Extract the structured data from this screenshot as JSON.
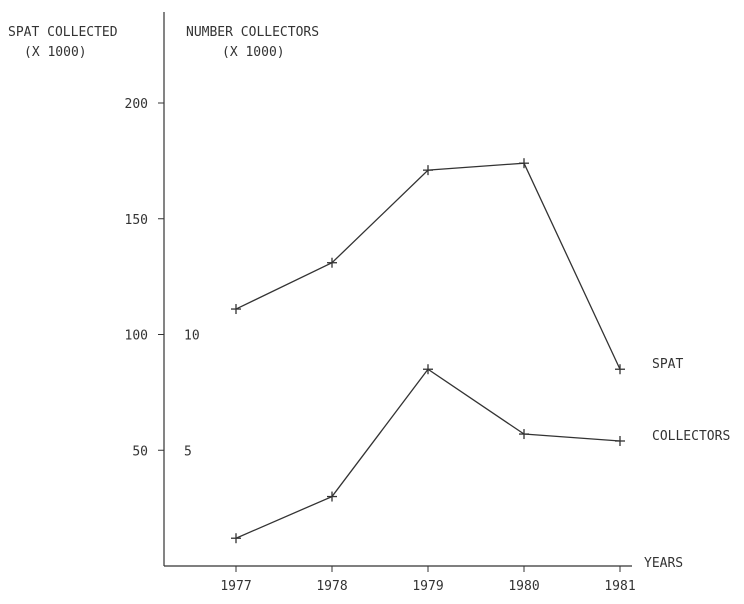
{
  "chart_data": {
    "type": "line",
    "left_axis_title": [
      "SPAT COLLECTED",
      "(X 1000)"
    ],
    "right_axis_title": [
      "NUMBER COLLECTORS",
      "(X 1000)"
    ],
    "xlabel": "YEARS",
    "categories": [
      "1977",
      "1978",
      "1979",
      "1980",
      "1981"
    ],
    "left_ticks": [
      "50",
      "100",
      "150",
      "200"
    ],
    "left_tick_values": [
      50,
      100,
      150,
      200
    ],
    "right_ticks": [
      "5",
      "10"
    ],
    "right_tick_values": [
      5,
      10
    ],
    "ylim_left": [
      0,
      200
    ],
    "ylim_right": [
      0,
      20
    ],
    "series": [
      {
        "name": "SPAT",
        "axis": "left",
        "values": [
          111,
          131,
          171,
          174,
          85
        ]
      },
      {
        "name": "COLLECTORS",
        "axis": "right",
        "values": [
          1.2,
          3.0,
          8.5,
          5.7,
          5.4
        ]
      }
    ],
    "grid": false,
    "line_color": "#333333"
  }
}
